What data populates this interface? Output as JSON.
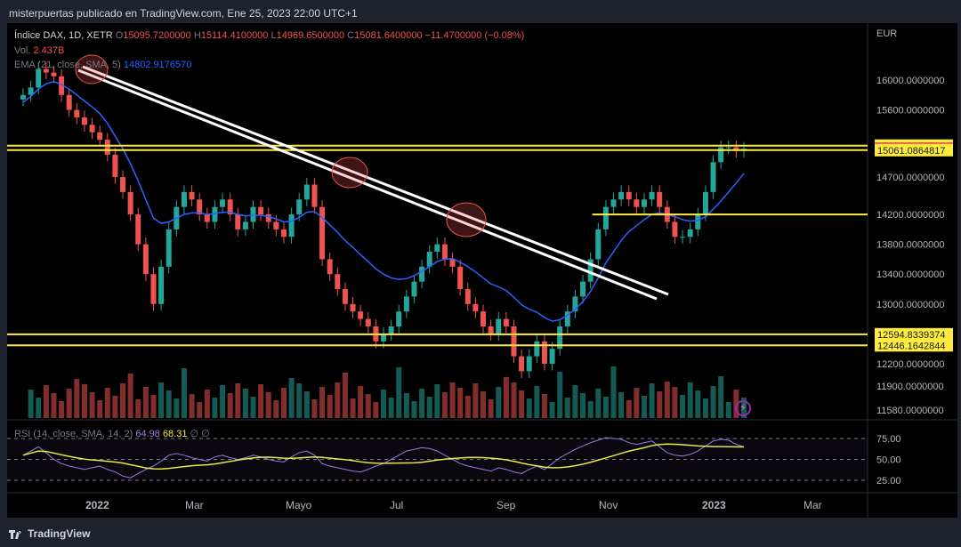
{
  "header": {
    "publisher_line": "misterpuertas publicado en TradingView.com, Ene 25, 2023 22:00 UTC+1"
  },
  "legend": {
    "symbol": "Índice DAX, 1D, XETR",
    "open_label": "O",
    "open": "15095.7200000",
    "high_label": "H",
    "high": "15114.4100000",
    "low_label": "L",
    "low": "14969.6500000",
    "close_label": "C",
    "close": "15081.6400000",
    "change": "−11.4700000 (−0.08%)",
    "vol_label": "Vol.",
    "vol": "2.437B",
    "ema_label": "EMA (21, close, SMA, 5)",
    "ema": "14802.9176570"
  },
  "rsi_legend": {
    "label": "RSI (14, close, SMA, 14, 2)",
    "rsi": "64.98",
    "sma": "68.31",
    "tail": "∅ ∅"
  },
  "footer": {
    "brand": "TradingView"
  },
  "colors": {
    "up": "#26a69a",
    "down": "#ef5350",
    "ema": "#2962ff",
    "level": "#ffeb3b",
    "trend": "#ffffff",
    "rsi": "#9c7be0",
    "rsi_ma": "#e8e84a"
  },
  "chart_data": {
    "type": "candlestick",
    "currency_label": "EUR",
    "y_ticks": [
      "16000.0000000",
      "15600.0000000",
      "14700.0000000",
      "14200.0000000",
      "13800.0000000",
      "13400.0000000",
      "13000.0000000",
      "12200.0000000",
      "11900.0000000",
      "11580.0000000"
    ],
    "x_ticks": [
      "2022",
      "Mar",
      "Mayo",
      "Jul",
      "Sep",
      "Nov",
      "2023",
      "Mar"
    ],
    "price_tags": [
      {
        "value": "15121.6378719",
        "kind": "level"
      },
      {
        "value": "15081.6400000",
        "kind": "last"
      },
      {
        "value": "15061.0864817",
        "kind": "level"
      },
      {
        "value": "12594.8339374",
        "kind": "level"
      },
      {
        "value": "12446.1642844",
        "kind": "level"
      }
    ],
    "horizontal_levels": [
      15121.64,
      15061.09,
      14200.0,
      12594.83,
      12446.16
    ],
    "partial_level": {
      "value": 14200.0,
      "from": "Oct 2022"
    },
    "trend_lines": [
      {
        "from": [
          "Jan 2022",
          16250
        ],
        "to": [
          "Nov 2022",
          13030
        ]
      },
      {
        "from": [
          "Jan 2022",
          16150
        ],
        "to": [
          "Nov 2022",
          12940
        ]
      }
    ],
    "highlight_circles": [
      "Jan 2022",
      "Jun 2022",
      "Aug 2022"
    ],
    "close_series": [
      15800,
      15900,
      16150,
      16100,
      16050,
      15800,
      15600,
      15500,
      15400,
      15300,
      15200,
      15000,
      14700,
      14500,
      14200,
      13800,
      13400,
      13000,
      13500,
      14000,
      14300,
      14500,
      14400,
      14200,
      14100,
      14300,
      14400,
      14200,
      14000,
      14100,
      14300,
      14200,
      14100,
      14000,
      13900,
      14200,
      14400,
      14600,
      14300,
      13600,
      13400,
      13200,
      13000,
      12900,
      12800,
      12700,
      12500,
      12600,
      12700,
      12900,
      13100,
      13300,
      13500,
      13700,
      13800,
      13600,
      13500,
      13200,
      13000,
      12900,
      12700,
      12600,
      12800,
      12700,
      12300,
      12100,
      12300,
      12500,
      12200,
      12400,
      12700,
      12900,
      13100,
      13300,
      13600,
      14000,
      14300,
      14400,
      14500,
      14400,
      14300,
      14400,
      14500,
      14300,
      14100,
      13900,
      13900,
      14000,
      14200,
      14500,
      14900,
      15100,
      15100,
      15050,
      15080
    ],
    "ema_series": [
      15700,
      15780,
      15880,
      15950,
      15980,
      15940,
      15880,
      15800,
      15720,
      15640,
      15550,
      15420,
      15250,
      15080,
      14880,
      14650,
      14400,
      14150,
      14080,
      14100,
      14150,
      14200,
      14220,
      14220,
      14200,
      14210,
      14230,
      14230,
      14200,
      14180,
      14190,
      14190,
      14170,
      14140,
      14100,
      14110,
      14160,
      14230,
      14240,
      14160,
      14060,
      13960,
      13850,
      13760,
      13660,
      13570,
      13470,
      13400,
      13350,
      13330,
      13340,
      13380,
      13440,
      13500,
      13570,
      13600,
      13610,
      13560,
      13500,
      13430,
      13350,
      13270,
      13230,
      13180,
      13090,
      12990,
      12930,
      12890,
      12820,
      12770,
      12790,
      12850,
      12930,
      13030,
      13170,
      13350,
      13550,
      13700,
      13850,
      13970,
      14050,
      14130,
      14200,
      14220,
      14200,
      14170,
      14130,
      14110,
      14120,
      14170,
      14270,
      14380,
      14500,
      14620,
      14750
    ],
    "rsi_series": [
      55,
      60,
      65,
      58,
      50,
      45,
      42,
      40,
      38,
      40,
      42,
      38,
      35,
      30,
      28,
      33,
      38,
      42,
      48,
      55,
      57,
      55,
      52,
      50,
      48,
      53,
      55,
      52,
      50,
      52,
      55,
      53,
      50,
      48,
      47,
      53,
      58,
      60,
      55,
      45,
      42,
      40,
      38,
      36,
      35,
      38,
      42,
      45,
      50,
      55,
      60,
      62,
      64,
      63,
      60,
      55,
      50,
      45,
      42,
      40,
      38,
      36,
      40,
      38,
      35,
      33,
      38,
      42,
      38,
      45,
      52,
      57,
      62,
      66,
      70,
      73,
      76,
      75,
      74,
      70,
      68,
      70,
      72,
      65,
      58,
      55,
      54,
      56,
      60,
      66,
      72,
      74,
      73,
      68,
      65
    ],
    "rsi_ticks": [
      "75.00",
      "50.00",
      "25.00"
    ]
  }
}
